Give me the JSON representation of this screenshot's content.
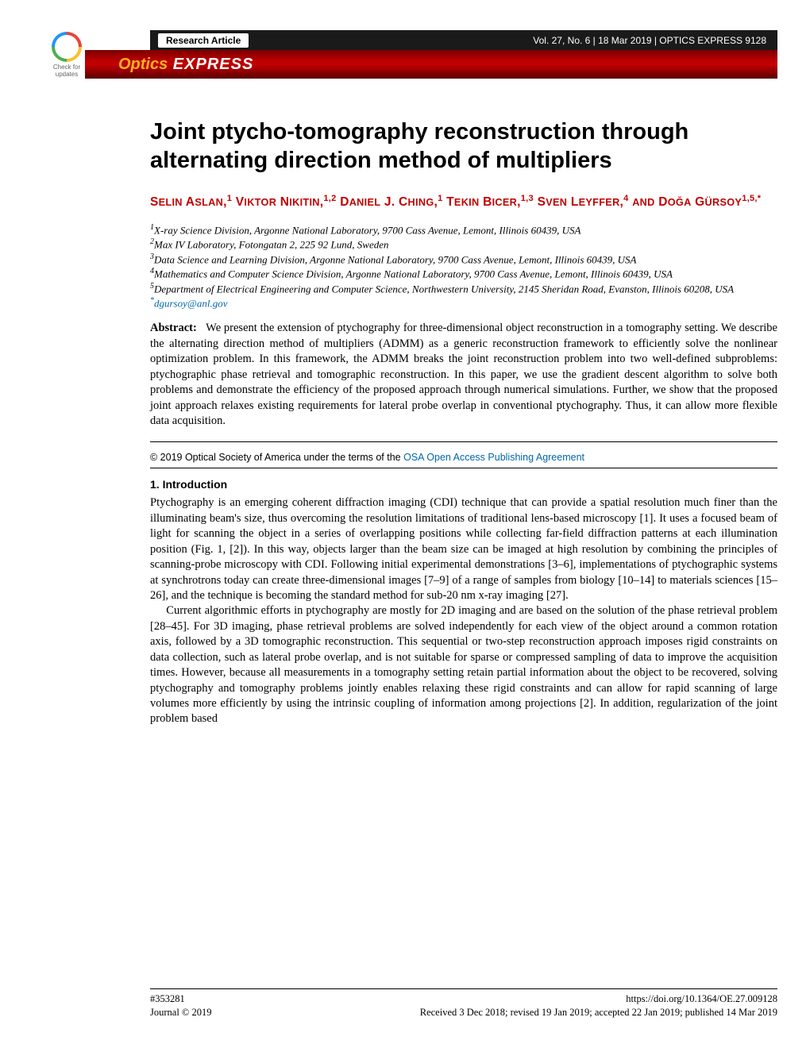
{
  "header": {
    "badge_label": "Research Article",
    "meta": "Vol. 27, No. 6 | 18 Mar 2019 | OPTICS EXPRESS 9128",
    "banner_optics": "Optics",
    "banner_express": " EXPRESS",
    "crossmark_line1": "Check for",
    "crossmark_line2": "updates"
  },
  "title": "Joint ptycho-tomography reconstruction through alternating direction method of multipliers",
  "authors_html": "S<span style='font-size:0.82em'>ELIN</span> A<span style='font-size:0.82em'>SLAN</span>,<sup>1</sup> V<span style='font-size:0.82em'>IKTOR</span> N<span style='font-size:0.82em'>IKITIN</span>,<sup>1,2</sup> D<span style='font-size:0.82em'>ANIEL</span> J. C<span style='font-size:0.82em'>HING</span>,<sup>1</sup> T<span style='font-size:0.82em'>EKIN</span> B<span style='font-size:0.82em'>ICER</span>,<sup>1,3</sup> S<span style='font-size:0.82em'>VEN</span> L<span style='font-size:0.82em'>EYFFER</span>,<sup>4</sup> <span style='font-size:0.82em'>AND</span> D<span style='font-size:0.82em'>OĞA</span> G<span style='font-size:0.82em'>ÜRSOY</span><sup>1,5,*</sup>",
  "affiliations": {
    "a1": "X-ray Science Division, Argonne National Laboratory, 9700 Cass Avenue, Lemont, Illinois 60439, USA",
    "a2": "Max IV Laboratory, Fotongatan 2, 225 92 Lund, Sweden",
    "a3": "Data Science and Learning Division, Argonne National Laboratory, 9700 Cass Avenue, Lemont, Illinois 60439, USA",
    "a4": "Mathematics and Computer Science Division, Argonne National Laboratory, 9700 Cass Avenue, Lemont, Illinois 60439, USA",
    "a5": "Department of Electrical Engineering and Computer Science, Northwestern University, 2145 Sheridan Road, Evanston, Illinois 60208, USA",
    "email": "dgursoy@anl.gov"
  },
  "abstract_label": "Abstract:",
  "abstract": "We present the extension of ptychography for three-dimensional object reconstruction in a tomography setting. We describe the alternating direction method of multipliers (ADMM) as a generic reconstruction framework to efficiently solve the nonlinear optimization problem. In this framework, the ADMM breaks the joint reconstruction problem into two well-defined subproblems: ptychographic phase retrieval and tomographic reconstruction. In this paper, we use the gradient descent algorithm to solve both problems and demonstrate the efficiency of the proposed approach through numerical simulations. Further, we show that the proposed joint approach relaxes existing requirements for lateral probe overlap in conventional ptychography. Thus, it can allow more flexible data acquisition.",
  "copyright_prefix": "© 2019 Optical Society of America under the terms of the ",
  "copyright_link": "OSA Open Access Publishing Agreement",
  "section1_heading": "1.   Introduction",
  "body_p1": "Ptychography is an emerging coherent diffraction imaging (CDI) technique that can provide a spatial resolution much finer than the illuminating beam's size, thus overcoming the resolution limitations of traditional lens-based microscopy [1]. It uses a focused beam of light for scanning the object in a series of overlapping positions while collecting far-field diffraction patterns at each illumination position (Fig. 1, [2]). In this way, objects larger than the beam size can be imaged at high resolution by combining the principles of scanning-probe microscopy with CDI. Following initial experimental demonstrations [3–6], implementations of ptychographic systems at synchrotrons today can create three-dimensional images [7–9] of a range of samples from biology [10–14] to materials sciences [15–26], and the technique is becoming the standard method for sub-20 nm x-ray imaging [27].",
  "body_p2": "Current algorithmic efforts in ptychography are mostly for 2D imaging and are based on the solution of the phase retrieval problem [28–45]. For 3D imaging, phase retrieval problems are solved independently for each view of the object around a common rotation axis, followed by a 3D tomographic reconstruction. This sequential or two-step reconstruction approach imposes rigid constraints on data collection, such as lateral probe overlap, and is not suitable for sparse or compressed sampling of data to improve the acquisition times. However, because all measurements in a tomography setting retain partial information about the object to be recovered, solving ptychography and tomography problems jointly enables relaxing these rigid constraints and can allow for rapid scanning of large volumes more efficiently by using the intrinsic coupling of information among projections [2]. In addition, regularization of the joint problem based",
  "footer": {
    "left1": "#353281",
    "right1": "https://doi.org/10.1364/OE.27.009128",
    "left2": "Journal © 2019",
    "right2": "Received 3 Dec 2018; revised 19 Jan 2019; accepted 22 Jan 2019; published 14 Mar 2019"
  }
}
